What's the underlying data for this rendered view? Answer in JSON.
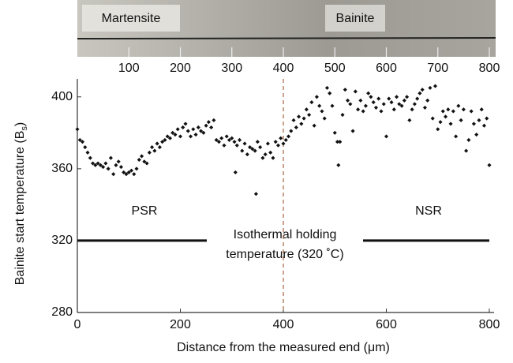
{
  "chart_data": {
    "type": "scatter",
    "xlabel": "Distance from the measured end (μm)",
    "ylabel": [
      "Bainite start temperature (B",
      "s",
      ")"
    ],
    "xlim": [
      0,
      800
    ],
    "xticks": [
      0,
      200,
      400,
      600,
      800
    ],
    "x2ticks": [
      100,
      200,
      300,
      400,
      500,
      600,
      700,
      800
    ],
    "ylim": [
      280,
      410
    ],
    "yticks": [
      280,
      320,
      360,
      400
    ],
    "color": "#111111",
    "vline": 400,
    "vline_color": "#b07050",
    "hline": 320,
    "annotations": {
      "micro_left": "Martensite",
      "micro_right": "Bainite",
      "left_region": "PSR",
      "right_region": "NSR",
      "hline_text": [
        "Isothermal holding",
        "temperature (320 ˚C)"
      ]
    },
    "x": [
      0,
      5,
      10,
      15,
      20,
      25,
      30,
      35,
      40,
      45,
      50,
      55,
      60,
      65,
      70,
      75,
      80,
      85,
      90,
      95,
      100,
      105,
      110,
      115,
      120,
      125,
      130,
      135,
      140,
      145,
      150,
      155,
      160,
      165,
      170,
      175,
      180,
      185,
      190,
      195,
      200,
      205,
      210,
      215,
      220,
      225,
      230,
      235,
      240,
      245,
      250,
      255,
      260,
      265,
      270,
      275,
      280,
      285,
      290,
      295,
      300,
      305,
      307,
      310,
      315,
      320,
      325,
      330,
      335,
      340,
      345,
      347,
      350,
      355,
      360,
      365,
      370,
      375,
      380,
      385,
      390,
      395,
      400,
      405,
      410,
      415,
      420,
      425,
      430,
      435,
      440,
      445,
      450,
      455,
      460,
      465,
      470,
      475,
      480,
      485,
      490,
      495,
      500,
      505,
      507,
      510,
      515,
      520,
      525,
      530,
      535,
      540,
      545,
      550,
      555,
      560,
      565,
      570,
      575,
      580,
      585,
      590,
      595,
      600,
      605,
      610,
      615,
      620,
      625,
      630,
      635,
      640,
      645,
      650,
      655,
      660,
      665,
      670,
      675,
      680,
      685,
      690,
      695,
      700,
      705,
      710,
      715,
      720,
      725,
      730,
      735,
      740,
      745,
      750,
      755,
      760,
      765,
      770,
      775,
      780,
      785,
      790,
      795,
      800
    ],
    "values": [
      382,
      376,
      375,
      372,
      369,
      366,
      363,
      362,
      363,
      362,
      361,
      363,
      360,
      366,
      357,
      362,
      364,
      361,
      358,
      357,
      358,
      359,
      357,
      360,
      365,
      367,
      364,
      363,
      369,
      372,
      370,
      374,
      372,
      375,
      376,
      378,
      377,
      380,
      379,
      382,
      378,
      383,
      385,
      381,
      378,
      382,
      379,
      383,
      381,
      380,
      384,
      386,
      383,
      387,
      376,
      375,
      377,
      373,
      378,
      376,
      377,
      375,
      358,
      373,
      376,
      370,
      374,
      368,
      372,
      371,
      370,
      346,
      375,
      372,
      366,
      368,
      374,
      369,
      366,
      375,
      373,
      377,
      374,
      376,
      378,
      381,
      387,
      383,
      389,
      385,
      388,
      393,
      390,
      397,
      384,
      400,
      395,
      392,
      388,
      405,
      402,
      395,
      380,
      375,
      362,
      375,
      390,
      404,
      398,
      396,
      381,
      403,
      393,
      398,
      392,
      395,
      402,
      400,
      397,
      394,
      399,
      392,
      396,
      378,
      399,
      397,
      393,
      400,
      396,
      395,
      398,
      400,
      387,
      393,
      396,
      399,
      402,
      404,
      394,
      398,
      405,
      388,
      406,
      382,
      386,
      392,
      389,
      393,
      385,
      392,
      378,
      395,
      387,
      393,
      370,
      376,
      392,
      385,
      379,
      387,
      393,
      384,
      388,
      362
    ]
  }
}
